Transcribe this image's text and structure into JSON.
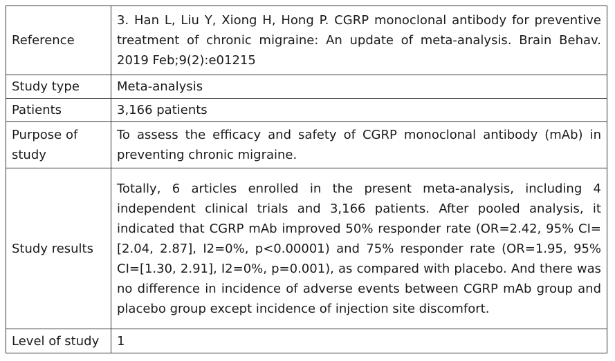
{
  "table": {
    "rows": [
      {
        "label": "Reference",
        "value": "3. Han L, Liu Y, Xiong H, Hong P. CGRP monoclonal antibody for preventive treatment of chronic migraine: An update of meta-analysis. Brain Behav. 2019 Feb;9(2):e01215"
      },
      {
        "label": "Study type",
        "value": "Meta-analysis"
      },
      {
        "label": "Patients",
        "value": "3,166 patients"
      },
      {
        "label": "Purpose of study",
        "value": "To assess the efficacy and safety of CGRP monoclonal antibody (mAb) in preventing chronic migraine."
      },
      {
        "label": "Study results",
        "value": "Totally, 6 articles enrolled in the present meta-analysis, including 4 independent clinical trials and 3,166 patients. After pooled analysis, it indicated that CGRP mAb improved 50% responder rate (OR=2.42, 95% CI=[2.04, 2.87], I2=0%, p<0.00001) and 75% responder rate (OR=1.95, 95% CI=[1.30, 2.91], I2=0%, p=0.001), as compared with placebo. And there was no difference in incidence of adverse events between CGRP mAb group and placebo group except incidence of injection site discomfort."
      },
      {
        "label": "Level of study",
        "value": "1"
      }
    ]
  }
}
